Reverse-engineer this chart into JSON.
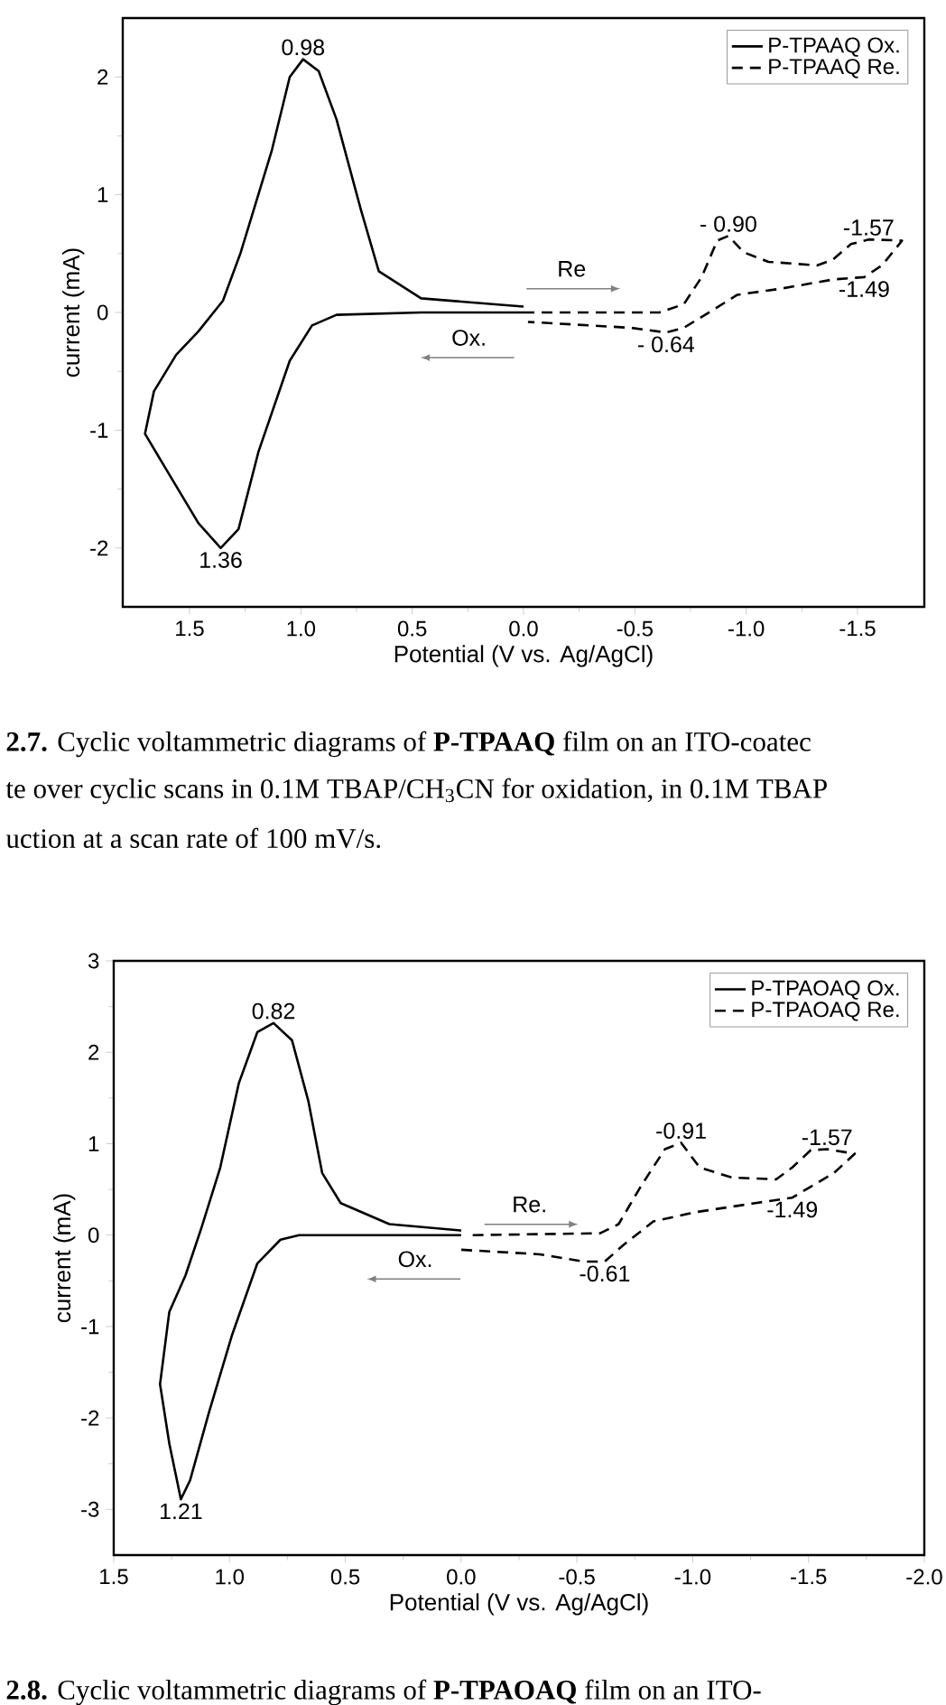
{
  "chart_data": [
    {
      "type": "line",
      "xlabel": "Potential (V vs. Ag/AgCl)",
      "ylabel": "current (mA)",
      "xlim": [
        1.8,
        -1.8
      ],
      "ylim": [
        -2.5,
        2.5
      ],
      "xticks": [
        1.5,
        {
          "value": 1,
          "label": "1.0"
        },
        0.5,
        {
          "value": 0,
          "label": "0.0"
        },
        -0.5,
        {
          "value": -1,
          "label": "-1.0"
        },
        -1.5
      ],
      "yticks": [
        -2,
        -1,
        0,
        1,
        2
      ],
      "legend": "top right",
      "series": [
        {
          "name": "P-TPAAQ Ox.",
          "color": "#000000",
          "line_style": "solid",
          "x": [
            0,
            0.46,
            0.65,
            0.73,
            0.84,
            0.92,
            0.99,
            1.05,
            1.13,
            1.27,
            1.35,
            1.46,
            1.56,
            1.66,
            1.7,
            1.59,
            1.46,
            1.36,
            1.28,
            1.19,
            1.05,
            0.95,
            0.84,
            0.46,
            0
          ],
          "values": [
            0.05,
            0.12,
            0.35,
            0.87,
            1.64,
            2.05,
            2.15,
            2.0,
            1.38,
            0.51,
            0.1,
            -0.16,
            -0.36,
            -0.67,
            -1.03,
            -1.38,
            -1.79,
            -2.0,
            -1.84,
            -1.18,
            -0.41,
            -0.11,
            -0.02,
            0,
            0
          ]
        },
        {
          "name": "P-TPAAQ Re.",
          "color": "#000000",
          "line_style": "dashed",
          "x": [
            0,
            -0.61,
            -0.72,
            -0.8,
            -0.87,
            -0.92,
            -0.99,
            -1.1,
            -1.32,
            -1.39,
            -1.47,
            -1.55,
            -1.7,
            -1.61,
            -1.53,
            -1.39,
            -1.15,
            -0.96,
            -0.85,
            -0.72,
            -0.64,
            -0.48,
            -0.02
          ],
          "values": [
            0,
            0,
            0.07,
            0.3,
            0.61,
            0.65,
            0.51,
            0.43,
            0.4,
            0.45,
            0.58,
            0.62,
            0.61,
            0.4,
            0.3,
            0.28,
            0.2,
            0.15,
            0.02,
            -0.13,
            -0.17,
            -0.13,
            -0.08
          ]
        }
      ],
      "annotations": [
        {
          "text": "0.98",
          "x": 0.99,
          "y": 2.15
        },
        {
          "text": "1.36",
          "x": 1.36,
          "y": -2.0
        },
        {
          "text": "- 0.90",
          "x": -0.92,
          "y": 0.65
        },
        {
          "text": "-1.57",
          "x": -1.55,
          "y": 0.62
        },
        {
          "text": "-1.49",
          "x": -1.53,
          "y": 0.3
        },
        {
          "text": "- 0.64",
          "x": -0.64,
          "y": -0.17
        },
        "Re",
        "Ox.",
        "**2.7.** Cyclic voltammetric diagrams of **P-TPAAQ** film on an ITO-coatec",
        "te over cyclic scans in 0.1M TBAP/CH$_{3}$CN for oxidation, in 0.1M TBAP",
        "uction at a scan rate of 100 mV/s."
      ]
    },
    {
      "type": "line",
      "xlabel": "Potential (V vs. Ag/AgCl)",
      "ylabel": "current (mA)",
      "xlim": [
        1.5,
        -2.0
      ],
      "ylim": [
        -3.5,
        3
      ],
      "xticks": [
        1.5,
        {
          "value": 1,
          "label": "1.0"
        },
        0.5,
        {
          "value": 0,
          "label": "0.0"
        },
        -0.5,
        {
          "value": -1,
          "label": "-1.0"
        },
        -1.5,
        {
          "value": -2,
          "label": "-2.0"
        }
      ],
      "yticks": [
        -3,
        -2,
        -1,
        0,
        1,
        2,
        3
      ],
      "legend": "top right",
      "series": [
        {
          "name": "P-TPAOAQ Ox.",
          "color": "#000000",
          "line_style": "solid",
          "x": [
            0,
            0.31,
            0.52,
            0.6,
            0.66,
            0.73,
            0.81,
            0.88,
            0.96,
            1.04,
            1.12,
            1.19,
            1.26,
            1.3,
            1.26,
            1.21,
            1.17,
            1.09,
            0.99,
            0.88,
            0.78,
            0.7,
            0
          ],
          "values": [
            0.05,
            0.12,
            0.35,
            0.68,
            1.47,
            2.13,
            2.32,
            2.22,
            1.66,
            0.74,
            0.09,
            -0.44,
            -0.84,
            -1.63,
            -2.28,
            -2.89,
            -2.68,
            -1.95,
            -1.1,
            -0.31,
            -0.05,
            0,
            0
          ]
        },
        {
          "name": "P-TPAOAQ Re.",
          "color": "#000000",
          "line_style": "dashed",
          "x": [
            -0.05,
            -0.6,
            -0.68,
            -0.78,
            -0.88,
            -0.95,
            -1.03,
            -1.17,
            -1.36,
            -1.43,
            -1.51,
            -1.58,
            -1.7,
            -1.61,
            -1.43,
            -1.27,
            -1.01,
            -0.83,
            -0.7,
            -0.62,
            -0.53,
            -0.34,
            0
          ],
          "values": [
            0,
            0.02,
            0.12,
            0.55,
            0.94,
            1.01,
            0.74,
            0.63,
            0.61,
            0.74,
            0.93,
            0.94,
            0.89,
            0.68,
            0.41,
            0.35,
            0.25,
            0.15,
            -0.11,
            -0.29,
            -0.29,
            -0.21,
            -0.16
          ]
        }
      ],
      "annotations": [
        {
          "text": "0.82",
          "x": 0.81,
          "y": 2.32
        },
        {
          "text": "1.21",
          "x": 1.21,
          "y": -2.89
        },
        {
          "text": "-0.91",
          "x": -0.95,
          "y": 1.01
        },
        {
          "text": "-1.57",
          "x": -1.58,
          "y": 0.94
        },
        {
          "text": "-1.49",
          "x": -1.43,
          "y": 0.41
        },
        {
          "text": "-0.61",
          "x": -0.62,
          "y": -0.29
        },
        "Re.",
        "Ox.",
        "**2.8.** Cyclic voltammetric diagrams of **P-TPAOAQ** film on an ITO-"
      ]
    }
  ]
}
